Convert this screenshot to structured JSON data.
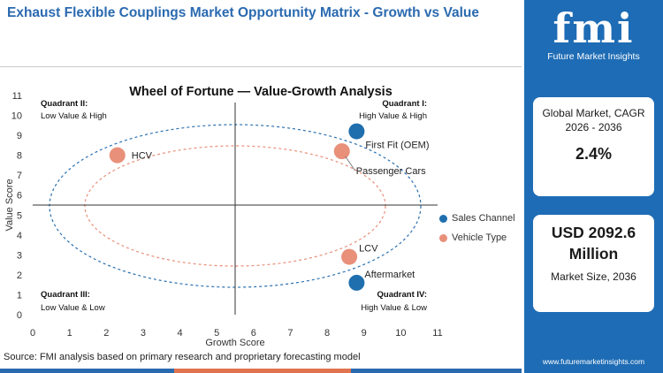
{
  "header": {
    "title": "Exhaust Flexible Couplings Market Opportunity Matrix - Growth vs Value"
  },
  "footer": {
    "source": "Source: FMI analysis based on primary research and proprietary forecasting model"
  },
  "sidebar": {
    "logo_text": "fmi",
    "logo_sub": "Future Market Insights",
    "card1_label": "Global Market, CAGR 2026 - 2036",
    "card1_value": "2.4%",
    "card2_value": "USD 2092.6 Million",
    "card2_label": "Market Size, 2036",
    "website": "www.futuremarketinsights.com"
  },
  "colors": {
    "brand": "#1e6cb5",
    "title": "#2a6ab0",
    "sales_channel": "#1f6fae",
    "vehicle_type": "#e8907a"
  },
  "chart_data": {
    "type": "scatter",
    "title": "Wheel of Fortune — Value-Growth Analysis",
    "xlabel": "Growth Score",
    "ylabel": "Value Score",
    "xlim": [
      0,
      11
    ],
    "ylim": [
      0,
      11
    ],
    "xticks": [
      "0",
      "1",
      "2",
      "3",
      "4",
      "5",
      "6",
      "7",
      "8",
      "9",
      "10",
      "11"
    ],
    "yticks": [
      "0",
      "1",
      "2",
      "3",
      "4",
      "5",
      "6",
      "7",
      "8",
      "9",
      "10",
      "11"
    ],
    "divider_x": 5.5,
    "divider_y": 5.5,
    "series": [
      {
        "name": "Sales Channel",
        "color": "#1f6fae",
        "points": [
          {
            "label": "First Fit (OEM)",
            "x": 8.8,
            "y": 9.2
          },
          {
            "label": "Aftermarket",
            "x": 8.8,
            "y": 1.6
          }
        ]
      },
      {
        "name": "Vehicle Type",
        "color": "#e8907a",
        "points": [
          {
            "label": "HCV",
            "x": 2.3,
            "y": 8.0
          },
          {
            "label": "Passenger Cars",
            "x": 8.4,
            "y": 8.2
          },
          {
            "label": "LCV",
            "x": 8.6,
            "y": 2.9
          }
        ]
      }
    ],
    "quadrants": [
      {
        "name": "Quadrant II:",
        "desc": "Low Value & High",
        "pos": "top-left"
      },
      {
        "name": "Quadrant I:",
        "desc": "High Value & High",
        "pos": "top-right"
      },
      {
        "name": "Quadrant III:",
        "desc": "Low Value & Low",
        "pos": "bottom-left"
      },
      {
        "name": "Quadrant IV:",
        "desc": "High Value & Low",
        "pos": "bottom-right"
      }
    ],
    "legend_position": "right",
    "grid": false
  }
}
